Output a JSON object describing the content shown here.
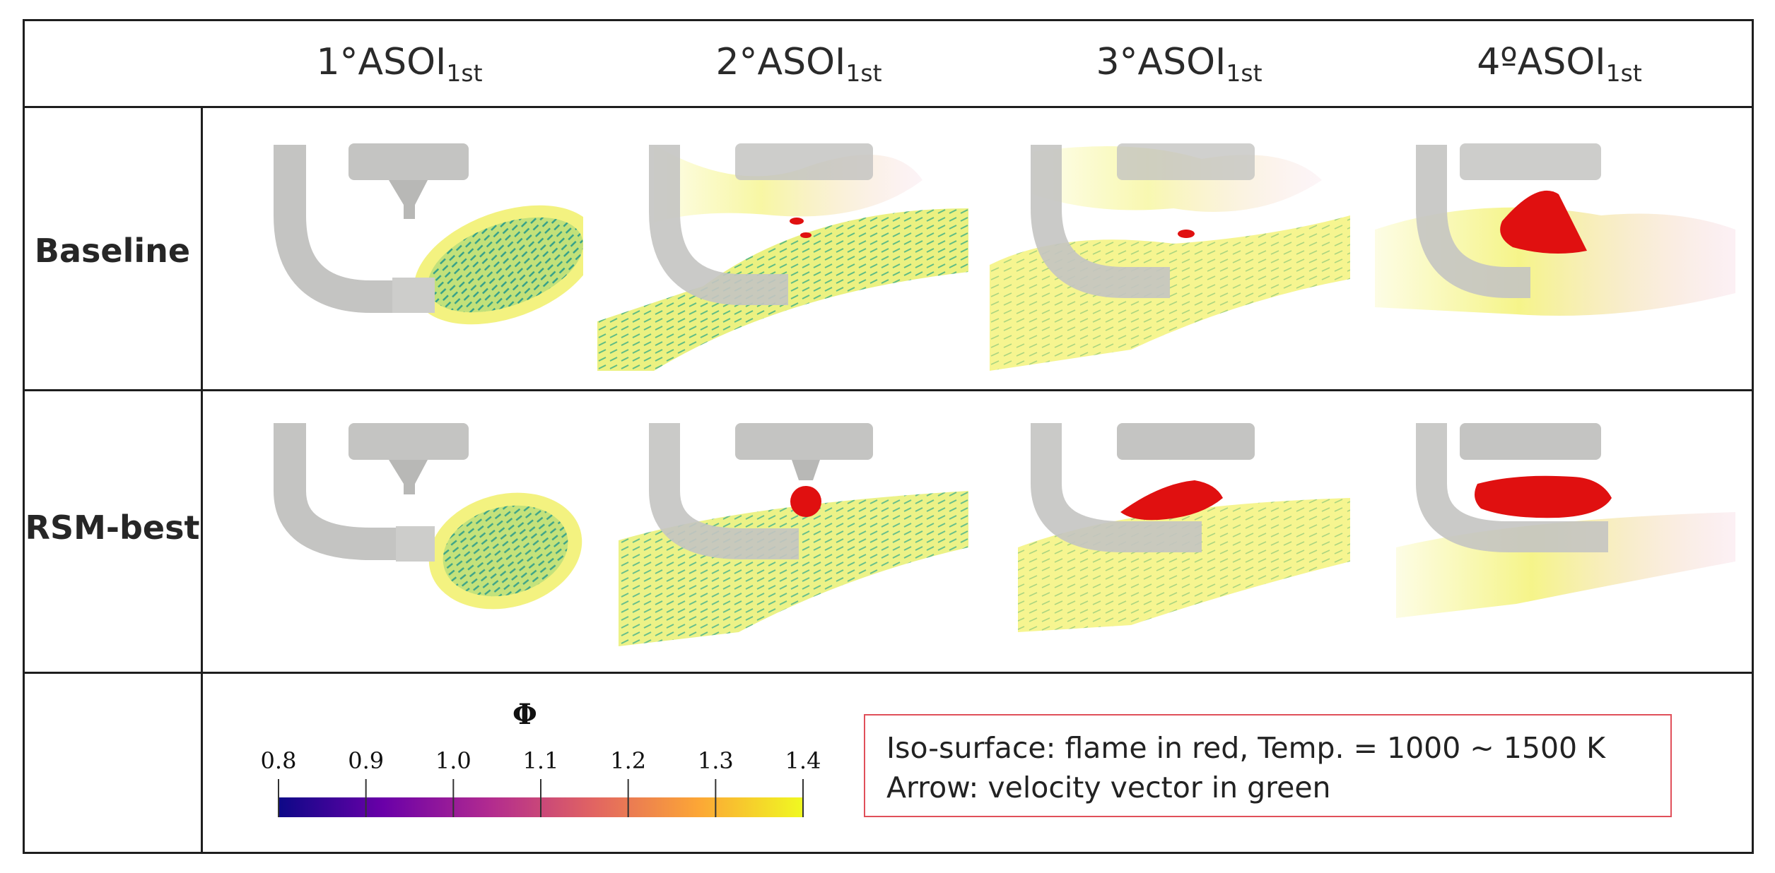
{
  "columns": [
    {
      "prefix": "1°ASOI",
      "sub": "1st"
    },
    {
      "prefix": "2°ASOI",
      "sub": "1st"
    },
    {
      "prefix": "3°ASOI",
      "sub": "1st"
    },
    {
      "prefix": "4ºASOI",
      "sub": "1st"
    }
  ],
  "rows": [
    {
      "label": "Baseline"
    },
    {
      "label": "RSM-best"
    }
  ],
  "colorbar": {
    "title": "Φ",
    "ticks": [
      "0.8",
      "0.9",
      "1.0",
      "1.1",
      "1.2",
      "1.3",
      "1.4"
    ],
    "colormap": [
      "#0d0887",
      "#6a00a8",
      "#b12a90",
      "#e16462",
      "#fca636",
      "#f0f921"
    ]
  },
  "note": {
    "line1": "Iso-surface: flame in red, Temp. = 1000 ~ 1500 K",
    "line2": "Arrow: velocity vector in green"
  },
  "colors": {
    "border": "#1e1e1e",
    "note_border": "#e0505a",
    "flame": "#e01010",
    "geometry": "#c4c4c2",
    "mixture": "#f1f06a",
    "vector": "#3aa88a"
  }
}
